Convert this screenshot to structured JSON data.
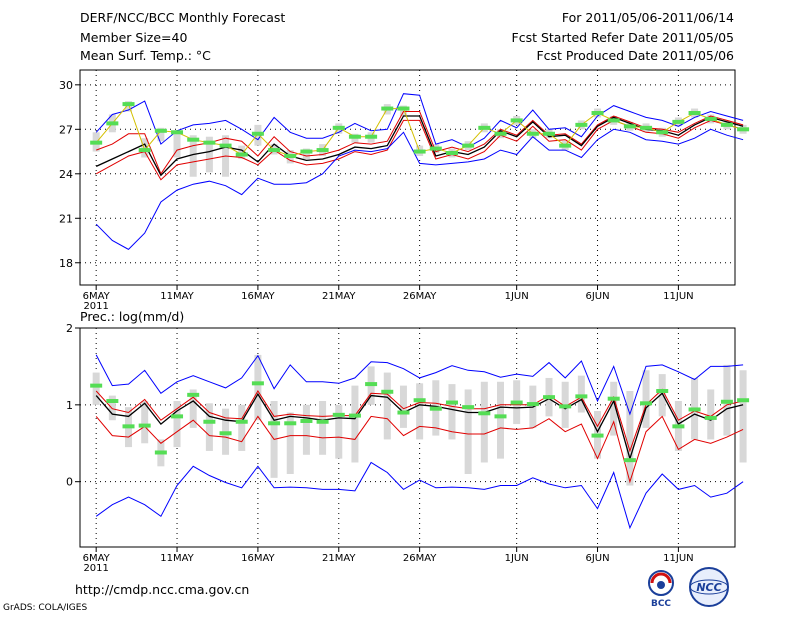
{
  "header": {
    "title": "DERF/NCC/BCC Monthly Forecast",
    "member_size": "Member Size=40",
    "variable": "Mean Surf. Temp.: °C",
    "period": "For 2011/05/06-2011/06/14",
    "fcst_started": "Fcst Started Refer Date 2011/05/05",
    "fcst_produced": "Fcst Produced Date 2011/05/06"
  },
  "footer": {
    "url": "http://cmdp.ncc.cma.gov.cn",
    "grads": "GrADS: COLA/IGES",
    "logo_left": "BCC",
    "logo_right": "NCC"
  },
  "colors": {
    "envelope": "#0000ff",
    "mean": "#000000",
    "bound": "#e00000",
    "obs": "#55dd55",
    "obs_line": "#d4c000",
    "box": "#d8d8d8"
  },
  "chart_data": [
    {
      "type": "line",
      "title": "Mean Surf. Temp.: °C",
      "xlabel": "",
      "ylabel": "°C",
      "x_ticks": [
        {
          "day": 0,
          "label": "6MAY",
          "sub": "2011"
        },
        {
          "day": 5,
          "label": "11MAY"
        },
        {
          "day": 10,
          "label": "16MAY"
        },
        {
          "day": 15,
          "label": "21MAY"
        },
        {
          "day": 20,
          "label": "26MAY"
        },
        {
          "day": 26,
          "label": "1JUN"
        },
        {
          "day": 31,
          "label": "6JUN"
        },
        {
          "day": 36,
          "label": "11JUN"
        }
      ],
      "xlim": [
        -1,
        39.5
      ],
      "ylim": [
        16.5,
        31
      ],
      "yticks": [
        {
          "v": 18,
          "label": "18"
        },
        {
          "v": 21,
          "label": "21"
        },
        {
          "v": 24,
          "label": "24"
        },
        {
          "v": 27,
          "label": "27"
        },
        {
          "v": 30,
          "label": "30"
        }
      ],
      "series": [
        {
          "name": "ensemble max",
          "role": "envelope",
          "values": [
            26.8,
            28.0,
            28.3,
            28.9,
            26.0,
            26.9,
            27.3,
            27.4,
            27.6,
            27.0,
            26.3,
            27.8,
            26.8,
            26.4,
            26.4,
            26.8,
            27.4,
            26.9,
            27.0,
            29.4,
            29.3,
            26.0,
            26.3,
            25.8,
            26.4,
            27.6,
            27.1,
            28.3,
            27.0,
            27.1,
            26.5,
            27.9,
            28.6,
            28.2,
            27.8,
            27.6,
            27.2,
            27.8,
            28.2,
            27.9,
            27.6
          ]
        },
        {
          "name": "upper bound",
          "role": "bound",
          "values": [
            25.6,
            26.0,
            26.7,
            26.7,
            24.0,
            25.6,
            25.9,
            26.1,
            26.4,
            26.2,
            25.2,
            26.5,
            25.5,
            25.2,
            25.3,
            25.6,
            26.1,
            26.0,
            26.2,
            28.2,
            28.2,
            25.5,
            25.8,
            25.5,
            26.0,
            27.0,
            26.6,
            27.6,
            26.6,
            26.7,
            26.0,
            27.3,
            27.9,
            27.5,
            27.1,
            27.0,
            26.8,
            27.4,
            27.9,
            27.6,
            27.3
          ]
        },
        {
          "name": "ensemble mean",
          "role": "mean",
          "values": [
            24.5,
            25.0,
            25.5,
            26.0,
            23.9,
            25.0,
            25.3,
            25.5,
            25.8,
            25.6,
            24.8,
            26.0,
            25.2,
            24.9,
            25.0,
            25.3,
            25.8,
            25.7,
            25.9,
            27.9,
            27.9,
            25.2,
            25.5,
            25.3,
            25.8,
            26.9,
            26.5,
            27.5,
            26.5,
            26.6,
            25.9,
            27.2,
            27.8,
            27.4,
            27.0,
            26.9,
            26.6,
            27.3,
            27.8,
            27.5,
            27.2
          ]
        },
        {
          "name": "lower bound",
          "role": "bound",
          "values": [
            24.0,
            24.6,
            25.2,
            25.5,
            23.6,
            24.6,
            24.8,
            25.0,
            25.2,
            25.1,
            24.6,
            25.6,
            24.9,
            24.6,
            24.7,
            25.0,
            25.5,
            25.3,
            25.6,
            27.6,
            27.6,
            25.0,
            25.3,
            25.0,
            25.5,
            26.6,
            26.2,
            27.2,
            26.2,
            26.3,
            25.6,
            27.0,
            27.6,
            27.2,
            26.8,
            26.7,
            26.4,
            27.1,
            27.6,
            27.3,
            27.0
          ]
        },
        {
          "name": "ensemble min",
          "role": "envelope",
          "values": [
            20.6,
            19.5,
            18.9,
            20.0,
            22.1,
            22.9,
            23.3,
            23.5,
            23.2,
            22.6,
            23.7,
            23.3,
            23.3,
            23.4,
            24.0,
            25.2,
            25.6,
            25.5,
            25.7,
            26.8,
            24.7,
            24.6,
            24.7,
            24.8,
            25.0,
            25.6,
            25.3,
            26.5,
            25.6,
            25.6,
            25.1,
            26.3,
            27.0,
            26.8,
            26.3,
            26.2,
            26.0,
            26.4,
            27.0,
            26.6,
            26.3
          ]
        },
        {
          "name": "observed",
          "role": "obs",
          "values": [
            26.1,
            27.4,
            28.7,
            25.6,
            26.9,
            26.8,
            26.3,
            26.1,
            25.9,
            25.3,
            26.7,
            25.6,
            25.2,
            25.5,
            25.6,
            27.1,
            26.5,
            26.5,
            28.4,
            28.4,
            25.5,
            25.7,
            25.4,
            25.9,
            27.1,
            26.7,
            27.6,
            26.7,
            26.7,
            25.9,
            27.3,
            28.1,
            27.6,
            27.2,
            27.1,
            26.8,
            27.5,
            28.1,
            27.7,
            27.3,
            27.0
          ]
        }
      ],
      "boxes": [
        [
          25.5,
          26.8
        ],
        [
          26.8,
          28.0
        ],
        [
          28.2,
          28.9
        ],
        [
          25.1,
          26.4
        ],
        [
          26.2,
          27.1
        ],
        [
          25.1,
          26.9
        ],
        [
          23.8,
          26.6
        ],
        [
          24.1,
          26.5
        ],
        [
          23.8,
          26.6
        ],
        [
          25.0,
          25.9
        ],
        [
          25.9,
          27.3
        ],
        [
          25.3,
          26.0
        ],
        [
          24.7,
          25.6
        ],
        [
          25.0,
          25.7
        ],
        [
          25.2,
          26.0
        ],
        [
          26.7,
          27.4
        ],
        [
          26.1,
          26.7
        ],
        [
          26.1,
          26.8
        ],
        [
          28.0,
          28.7
        ],
        [
          27.9,
          28.6
        ],
        [
          25.2,
          25.9
        ],
        [
          25.4,
          26.0
        ],
        [
          25.1,
          25.7
        ],
        [
          25.6,
          26.2
        ],
        [
          26.8,
          27.4
        ],
        [
          26.4,
          27.0
        ],
        [
          27.3,
          27.9
        ],
        [
          26.4,
          27.0
        ],
        [
          26.4,
          27.0
        ],
        [
          25.6,
          26.2
        ],
        [
          27.0,
          27.6
        ],
        [
          27.8,
          28.4
        ],
        [
          27.3,
          27.9
        ],
        [
          26.9,
          27.5
        ],
        [
          26.8,
          27.4
        ],
        [
          26.5,
          27.1
        ],
        [
          27.2,
          27.8
        ],
        [
          27.8,
          28.4
        ],
        [
          27.4,
          28.0
        ],
        [
          27.0,
          27.6
        ],
        [
          26.7,
          27.3
        ]
      ]
    },
    {
      "type": "line",
      "title": "Prec.: log(mm/d)",
      "xlabel": "",
      "ylabel": "log(mm/d)",
      "x_ticks": [
        {
          "day": 0,
          "label": "6MAY",
          "sub": "2011"
        },
        {
          "day": 5,
          "label": "11MAY"
        },
        {
          "day": 10,
          "label": "16MAY"
        },
        {
          "day": 15,
          "label": "21MAY"
        },
        {
          "day": 20,
          "label": "26MAY"
        },
        {
          "day": 26,
          "label": "1JUN"
        },
        {
          "day": 31,
          "label": "6JUN"
        },
        {
          "day": 36,
          "label": "11JUN"
        }
      ],
      "xlim": [
        -1,
        39.5
      ],
      "ylim": [
        -0.85,
        2
      ],
      "yticks": [
        {
          "v": 0,
          "label": "0"
        },
        {
          "v": 1,
          "label": "1"
        },
        {
          "v": 2,
          "label": "2"
        }
      ],
      "series": [
        {
          "name": "ensemble max",
          "role": "envelope",
          "values": [
            1.65,
            1.25,
            1.27,
            1.45,
            1.15,
            1.3,
            1.38,
            1.3,
            1.22,
            1.35,
            1.64,
            1.21,
            1.52,
            1.3,
            1.3,
            1.28,
            1.35,
            1.56,
            1.55,
            1.47,
            1.35,
            1.42,
            1.51,
            1.45,
            1.43,
            1.36,
            1.4,
            1.37,
            1.55,
            1.35,
            1.57,
            1.05,
            1.5,
            0.88,
            1.5,
            1.52,
            1.43,
            1.33,
            1.5,
            1.5,
            1.52
          ]
        },
        {
          "name": "upper bound",
          "role": "bound",
          "values": [
            1.18,
            0.95,
            0.9,
            1.07,
            0.8,
            0.95,
            1.1,
            0.9,
            0.83,
            0.82,
            1.18,
            0.85,
            0.88,
            0.86,
            0.85,
            0.86,
            0.86,
            1.15,
            1.14,
            0.95,
            1.03,
            1.02,
            0.98,
            0.95,
            0.95,
            1.0,
            1.0,
            1.0,
            1.12,
            0.98,
            1.1,
            0.72,
            1.1,
            0.4,
            1.0,
            1.2,
            0.8,
            0.92,
            0.85,
            1.0,
            1.05
          ]
        },
        {
          "name": "ensemble mean",
          "role": "mean",
          "values": [
            1.12,
            0.88,
            0.85,
            1.02,
            0.75,
            0.92,
            1.05,
            0.85,
            0.8,
            0.78,
            1.14,
            0.8,
            0.85,
            0.83,
            0.8,
            0.83,
            0.82,
            1.12,
            1.1,
            0.9,
            1.0,
            0.98,
            0.94,
            0.9,
            0.9,
            0.97,
            0.96,
            0.97,
            1.08,
            0.95,
            1.07,
            0.65,
            1.05,
            0.3,
            0.96,
            1.15,
            0.75,
            0.88,
            0.8,
            0.95,
            1.0
          ]
        },
        {
          "name": "lower bound",
          "role": "bound",
          "values": [
            0.85,
            0.6,
            0.58,
            0.72,
            0.5,
            0.65,
            0.8,
            0.6,
            0.58,
            0.52,
            0.85,
            0.55,
            0.6,
            0.6,
            0.57,
            0.58,
            0.55,
            0.85,
            0.82,
            0.6,
            0.72,
            0.7,
            0.65,
            0.62,
            0.62,
            0.7,
            0.68,
            0.7,
            0.82,
            0.65,
            0.75,
            0.3,
            0.78,
            0.0,
            0.65,
            0.85,
            0.42,
            0.55,
            0.5,
            0.58,
            0.68
          ]
        },
        {
          "name": "ensemble min",
          "role": "envelope",
          "values": [
            -0.45,
            -0.3,
            -0.2,
            -0.3,
            -0.45,
            -0.05,
            0.2,
            0.08,
            -0.01,
            -0.08,
            0.2,
            -0.08,
            -0.07,
            -0.08,
            -0.1,
            -0.1,
            -0.12,
            0.25,
            0.12,
            -0.1,
            0.02,
            -0.08,
            -0.07,
            -0.08,
            -0.1,
            -0.05,
            -0.05,
            0.05,
            -0.03,
            -0.08,
            -0.05,
            -0.35,
            0.12,
            -0.6,
            -0.15,
            0.1,
            -0.1,
            -0.05,
            -0.2,
            -0.15,
            0.0
          ]
        },
        {
          "name": "observed",
          "role": "obs",
          "values": [
            1.25,
            1.05,
            0.72,
            0.73,
            0.38,
            0.85,
            1.13,
            0.78,
            0.63,
            0.78,
            1.28,
            0.76,
            0.76,
            0.79,
            0.78,
            0.87,
            0.86,
            1.27,
            1.17,
            0.9,
            1.06,
            0.95,
            1.03,
            0.97,
            0.89,
            0.85,
            1.03,
            1.01,
            1.1,
            0.98,
            1.11,
            0.6,
            1.08,
            0.28,
            1.02,
            1.18,
            0.72,
            0.94,
            0.83,
            1.04,
            1.06
          ]
        }
      ],
      "boxes": [
        [
          1.0,
          1.42
        ],
        [
          0.8,
          1.12
        ],
        [
          0.45,
          0.97
        ],
        [
          0.5,
          1.05
        ],
        [
          0.2,
          0.55
        ],
        [
          0.45,
          1.05
        ],
        [
          0.7,
          1.2
        ],
        [
          0.4,
          1.02
        ],
        [
          0.35,
          0.95
        ],
        [
          0.4,
          1.0
        ],
        [
          0.8,
          1.65
        ],
        [
          0.05,
          1.05
        ],
        [
          0.1,
          0.9
        ],
        [
          0.35,
          1.0
        ],
        [
          0.35,
          1.05
        ],
        [
          0.3,
          1.0
        ],
        [
          0.25,
          1.25
        ],
        [
          1.0,
          1.5
        ],
        [
          0.55,
          1.42
        ],
        [
          0.7,
          1.25
        ],
        [
          0.55,
          1.28
        ],
        [
          0.6,
          1.32
        ],
        [
          0.55,
          1.27
        ],
        [
          0.1,
          1.2
        ],
        [
          0.25,
          1.3
        ],
        [
          0.3,
          1.3
        ],
        [
          0.75,
          1.32
        ],
        [
          0.7,
          1.25
        ],
        [
          0.85,
          1.35
        ],
        [
          0.7,
          1.3
        ],
        [
          0.9,
          1.38
        ],
        [
          0.3,
          0.92
        ],
        [
          0.6,
          1.3
        ],
        [
          -0.05,
          1.18
        ],
        [
          0.7,
          1.45
        ],
        [
          0.85,
          1.4
        ],
        [
          0.4,
          1.05
        ],
        [
          0.55,
          1.35
        ],
        [
          0.55,
          1.2
        ],
        [
          0.6,
          1.52
        ],
        [
          0.25,
          1.45
        ]
      ]
    }
  ]
}
